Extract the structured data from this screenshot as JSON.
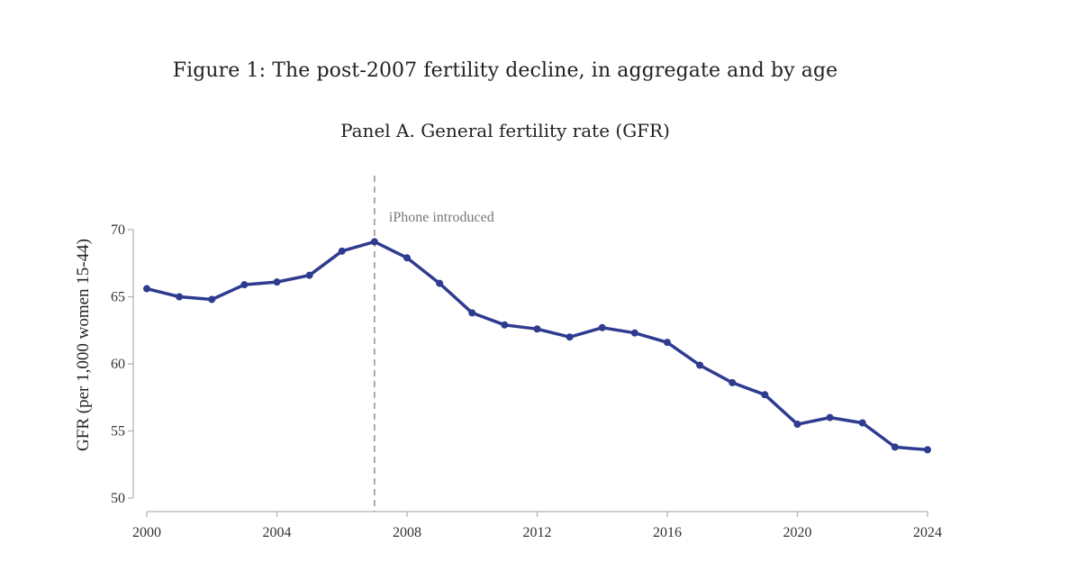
{
  "figure": {
    "title": "Figure 1: The post-2007 fertility decline, in aggregate and by age",
    "panel_title": "Panel A. General fertility rate (GFR)"
  },
  "chart_data": {
    "type": "line",
    "title": "Panel A. General fertility rate (GFR)",
    "xlabel": "",
    "ylabel": "GFR (per 1,000 women 15-44)",
    "xlim": [
      2000,
      2024
    ],
    "ylim": [
      50,
      70
    ],
    "x_ticks": [
      2000,
      2004,
      2008,
      2012,
      2016,
      2020,
      2024
    ],
    "y_ticks": [
      50,
      55,
      60,
      65,
      70
    ],
    "grid": false,
    "series": [
      {
        "color": "#2e3b8f",
        "x": [
          2000,
          2001,
          2002,
          2003,
          2004,
          2005,
          2006,
          2007,
          2008,
          2009,
          2010,
          2011,
          2012,
          2013,
          2014,
          2015,
          2016,
          2017,
          2018,
          2019,
          2020,
          2021,
          2022,
          2023,
          2024
        ],
        "values": [
          65.6,
          65.0,
          64.8,
          65.9,
          66.1,
          66.6,
          68.4,
          69.1,
          67.9,
          66.0,
          63.8,
          62.9,
          62.6,
          62.0,
          62.7,
          62.3,
          61.6,
          59.9,
          58.6,
          57.7,
          55.5,
          56.0,
          55.6,
          53.8,
          53.6
        ]
      }
    ],
    "annotations": [
      {
        "type": "vline",
        "x": 2007,
        "label": "iPhone introduced",
        "color": "#999999"
      }
    ]
  }
}
